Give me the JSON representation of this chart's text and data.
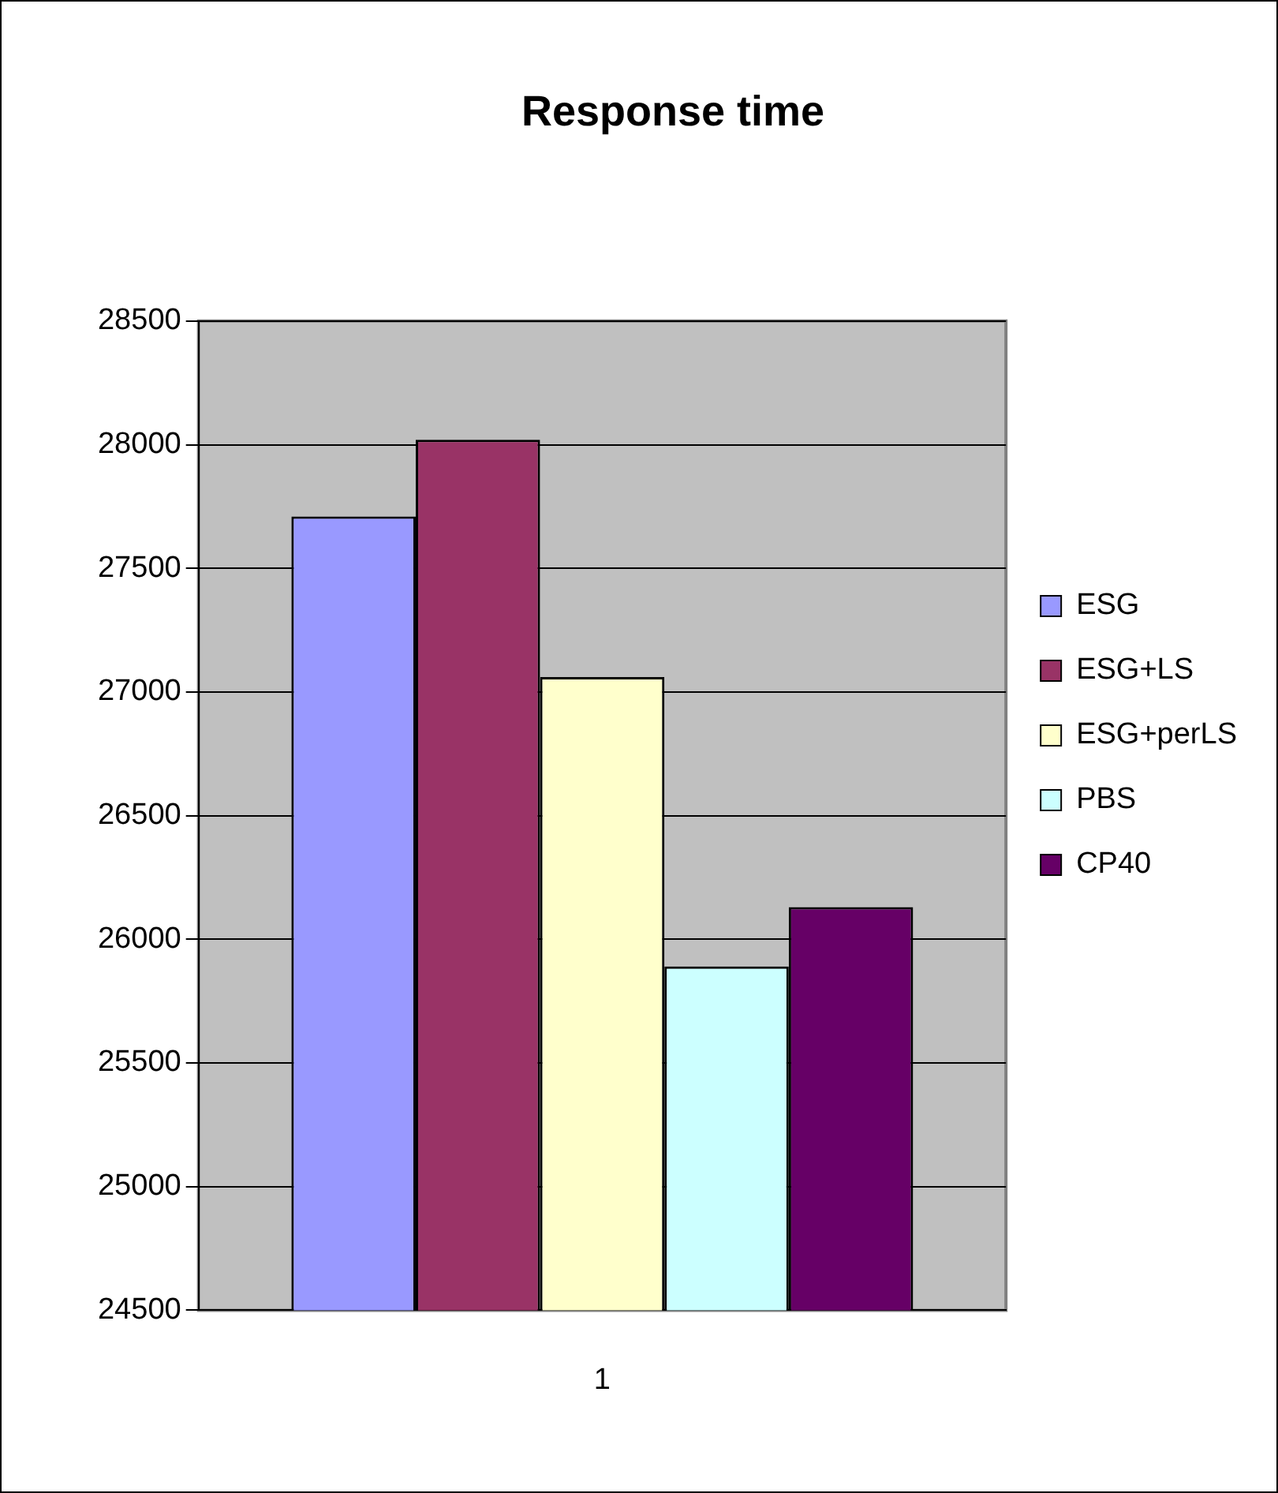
{
  "chart_data": {
    "type": "bar",
    "title": "Response time",
    "categories": [
      "1"
    ],
    "series": [
      {
        "name": "ESG",
        "color": "#9999ff",
        "values": [
          27710
        ]
      },
      {
        "name": "ESG+LS",
        "color": "#993366",
        "values": [
          28020
        ]
      },
      {
        "name": "ESG+perLS",
        "color": "#ffffcc",
        "values": [
          27060
        ]
      },
      {
        "name": "PBS",
        "color": "#ccffff",
        "values": [
          25890
        ]
      },
      {
        "name": "CP40",
        "color": "#660066",
        "values": [
          26130
        ]
      }
    ],
    "ylim": [
      24500,
      28500
    ],
    "yticks": [
      24500,
      25000,
      25500,
      26000,
      26500,
      27000,
      27500,
      28000,
      28500
    ],
    "grid": "y",
    "legend": "right"
  }
}
